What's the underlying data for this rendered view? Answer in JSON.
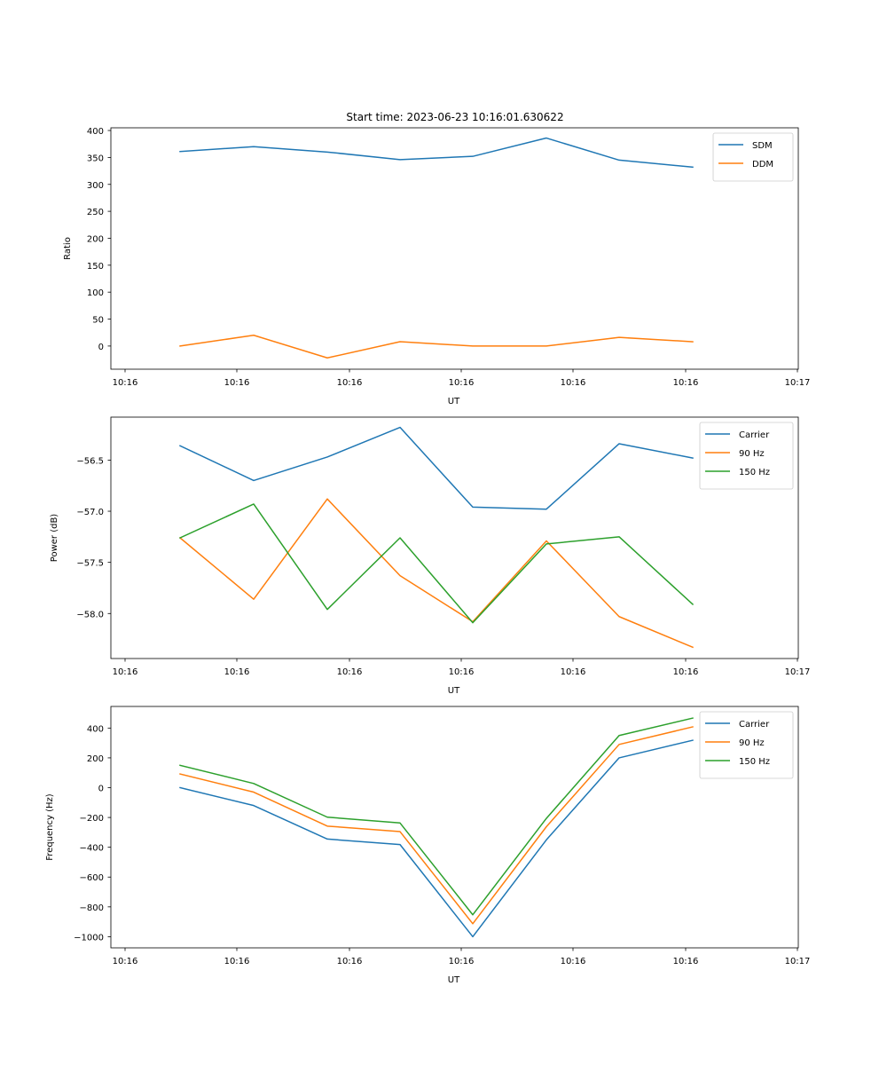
{
  "figure": {
    "title": "Start time: 2023-06-23 10:16:01.630622"
  },
  "colors": {
    "blue": "#1f77b4",
    "orange": "#ff7f0e",
    "green": "#2ca02c"
  },
  "chart_data": [
    {
      "type": "line",
      "title": "Start time: 2023-06-23 10:16:01.630622",
      "xlabel": "UT",
      "ylabel": "Ratio",
      "x_tick_labels": [
        "10:16",
        "10:16",
        "10:16",
        "10:16",
        "10:16",
        "10:16",
        "10:16",
        "10:17"
      ],
      "y_ticks": [
        0,
        50,
        100,
        150,
        200,
        250,
        300,
        350,
        400
      ],
      "y_tick_labels": [
        "0",
        "50",
        "100",
        "150",
        "200",
        "250",
        "300",
        "350",
        "400"
      ],
      "ylim": [
        -43,
        405
      ],
      "legend": "upper right",
      "grid": false,
      "series": [
        {
          "name": "SDM",
          "color": "#1f77b4",
          "values": [
            361,
            370,
            360,
            346,
            352,
            386,
            345,
            332
          ]
        },
        {
          "name": "DDM",
          "color": "#ff7f0e",
          "values": [
            0,
            20,
            -22,
            8,
            0,
            0,
            16,
            8
          ]
        }
      ]
    },
    {
      "type": "line",
      "title": "",
      "xlabel": "UT",
      "ylabel": "Power (dB)",
      "x_tick_labels": [
        "10:16",
        "10:16",
        "10:16",
        "10:16",
        "10:16",
        "10:16",
        "10:16",
        "10:17"
      ],
      "y_ticks": [
        -58.0,
        -57.5,
        -57.0,
        -56.5
      ],
      "y_tick_labels": [
        "−58.0",
        "−57.5",
        "−57.0",
        "−56.5"
      ],
      "ylim": [
        -58.44,
        -56.08
      ],
      "legend": "upper right",
      "grid": false,
      "series": [
        {
          "name": "Carrier",
          "color": "#1f77b4",
          "values": [
            -56.36,
            -56.7,
            -56.47,
            -56.18,
            -56.96,
            -56.98,
            -56.34,
            -56.48
          ]
        },
        {
          "name": "90 Hz",
          "color": "#ff7f0e",
          "values": [
            -57.26,
            -57.86,
            -56.88,
            -57.63,
            -58.08,
            -57.29,
            -58.03,
            -58.33
          ]
        },
        {
          "name": "150 Hz",
          "color": "#2ca02c",
          "values": [
            -57.26,
            -56.93,
            -57.96,
            -57.26,
            -58.09,
            -57.32,
            -57.25,
            -57.91
          ]
        }
      ]
    },
    {
      "type": "line",
      "title": "",
      "xlabel": "UT",
      "ylabel": "Frequency (Hz)",
      "x_tick_labels": [
        "10:16",
        "10:16",
        "10:16",
        "10:16",
        "10:16",
        "10:16",
        "10:16",
        "10:17"
      ],
      "y_ticks": [
        -1000,
        -800,
        -600,
        -400,
        -200,
        0,
        200,
        400
      ],
      "y_tick_labels": [
        "−1000",
        "−800",
        "−600",
        "−400",
        "−200",
        "0",
        "200",
        "400"
      ],
      "ylim": [
        -1075,
        545
      ],
      "legend": "upper right",
      "grid": false,
      "series": [
        {
          "name": "Carrier",
          "color": "#1f77b4",
          "values": [
            0,
            -120,
            -345,
            -382,
            -1000,
            -350,
            200,
            318
          ]
        },
        {
          "name": "90 Hz",
          "color": "#ff7f0e",
          "values": [
            92,
            -30,
            -258,
            -295,
            -913,
            -262,
            290,
            408
          ]
        },
        {
          "name": "150 Hz",
          "color": "#2ca02c",
          "values": [
            150,
            28,
            -198,
            -237,
            -853,
            -206,
            350,
            467
          ]
        }
      ]
    }
  ]
}
